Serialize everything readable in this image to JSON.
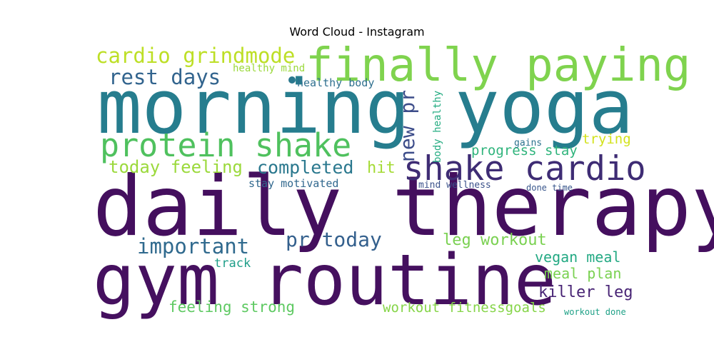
{
  "title": "Word Cloud - Instagram",
  "words": [
    {
      "text": "daily therapy",
      "color": "#440f5e"
    },
    {
      "text": "gym routine",
      "color": "#45105f"
    },
    {
      "text": "morning yoga",
      "color": "#267d8e"
    },
    {
      "text": "finally paying",
      "color": "#7fd34e"
    },
    {
      "text": "shake cardio",
      "color": "#3e2c74"
    },
    {
      "text": "protein shake",
      "color": "#4fc15e"
    },
    {
      "text": "cardio grindmode",
      "color": "#bddf26"
    },
    {
      "text": "rest days",
      "color": "#32648e"
    },
    {
      "text": "new pr",
      "color": "#3d4d8a"
    },
    {
      "text": "today feeling",
      "color": "#9bd93c"
    },
    {
      "text": "completed",
      "color": "#2a788e"
    },
    {
      "text": "hit",
      "color": "#a5db36"
    },
    {
      "text": "progress stay",
      "color": "#2fb47c"
    },
    {
      "text": "trying",
      "color": "#d2e21b"
    },
    {
      "text": "important",
      "color": "#306a8e"
    },
    {
      "text": "pr today",
      "color": "#34608d"
    },
    {
      "text": "leg workout",
      "color": "#7ad151"
    },
    {
      "text": "vegan meal",
      "color": "#23a983"
    },
    {
      "text": "meal plan",
      "color": "#7ad151"
    },
    {
      "text": "killer leg",
      "color": "#482475"
    },
    {
      "text": "feeling strong",
      "color": "#5ec962"
    },
    {
      "text": "workout fitnessgoals",
      "color": "#86d549"
    },
    {
      "text": "track",
      "color": "#1f9e89"
    },
    {
      "text": "stay motivated",
      "color": "#31688e"
    },
    {
      "text": "mind wellness",
      "color": "#3b528b"
    },
    {
      "text": "done time",
      "color": "#39568c"
    },
    {
      "text": "gains",
      "color": "#2c728e"
    },
    {
      "text": "body healthy",
      "color": "#25ac82"
    },
    {
      "text": "healthy mind",
      "color": "#9bd93c"
    },
    {
      "text": "healthy body",
      "color": "#2e6f8e"
    },
    {
      "text": "workout done",
      "color": "#1fa187"
    }
  ],
  "dot_color": "#2a788e"
}
